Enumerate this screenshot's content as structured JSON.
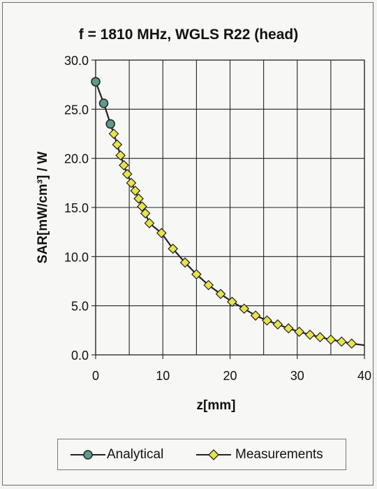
{
  "chart_data": {
    "type": "line",
    "title": "f = 1810 MHz, WGLS R22 (head)",
    "xlabel": "z[mm]",
    "ylabel": "SAR[mW/cm³] / W",
    "xlim": [
      0,
      40
    ],
    "ylim": [
      0,
      30
    ],
    "x_ticks": [
      "0",
      "10",
      "20",
      "30",
      "40"
    ],
    "y_ticks": [
      "0.0",
      "5.0",
      "10.0",
      "15.0",
      "20.0",
      "25.0",
      "30.0"
    ],
    "grid": true,
    "legend_position": "bottom",
    "series": [
      {
        "name": "Analytical",
        "marker": "circle",
        "color": "#5e9a8c",
        "x": [
          0,
          1.2,
          2.2
        ],
        "y": [
          27.8,
          25.6,
          23.5
        ]
      },
      {
        "name": "Measurements",
        "marker": "diamond",
        "color": "#e8e34a",
        "x": [
          2.7,
          3.2,
          3.7,
          4.2,
          4.7,
          5.3,
          5.9,
          6.4,
          6.9,
          7.4,
          8.0,
          9.8,
          11.5,
          13.3,
          15.0,
          16.8,
          18.6,
          20.3,
          22.1,
          23.8,
          25.5,
          27.1,
          28.7,
          30.3,
          31.9,
          33.4,
          35.0,
          36.6,
          38.1
        ],
        "y": [
          22.5,
          21.4,
          20.3,
          19.3,
          18.4,
          17.5,
          16.7,
          15.9,
          15.1,
          14.4,
          13.4,
          12.4,
          10.8,
          9.4,
          8.2,
          7.1,
          6.2,
          5.4,
          4.7,
          4.0,
          3.5,
          3.1,
          2.7,
          2.35,
          2.05,
          1.8,
          1.55,
          1.35,
          1.15
        ]
      }
    ],
    "curve_color": "#222222"
  }
}
